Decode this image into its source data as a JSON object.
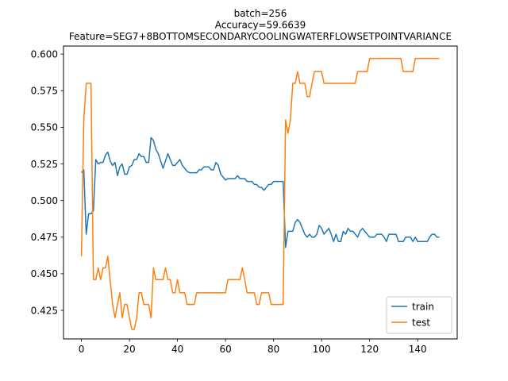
{
  "chart_data": {
    "type": "line",
    "title_lines": [
      "batch=256",
      "Accuracy=59.6639",
      "Feature=SEG7+8BOTTOMSECONDARYCOOLINGWATERFLOWSETPOINTVARIANCE"
    ],
    "xlabel": "",
    "ylabel": "",
    "xlim": [
      -7.45,
      156.45
    ],
    "ylim": [
      0.4055,
      0.6055
    ],
    "xticks": [
      0,
      20,
      40,
      60,
      80,
      100,
      120,
      140
    ],
    "yticks": [
      0.425,
      0.45,
      0.475,
      0.5,
      0.525,
      0.55,
      0.575,
      0.6
    ],
    "ytick_labels": [
      "0.425",
      "0.450",
      "0.475",
      "0.500",
      "0.525",
      "0.550",
      "0.575",
      "0.600"
    ],
    "grid": false,
    "legend": {
      "position": "lower-right",
      "entries": [
        "train",
        "test"
      ]
    },
    "series": [
      {
        "name": "train",
        "color": "#1f77b4",
        "values": [
          0.519,
          0.521,
          0.477,
          0.491,
          0.491,
          0.493,
          0.528,
          0.525,
          0.526,
          0.526,
          0.531,
          0.533,
          0.527,
          0.524,
          0.526,
          0.517,
          0.523,
          0.525,
          0.518,
          0.518,
          0.523,
          0.524,
          0.528,
          0.528,
          0.532,
          0.53,
          0.53,
          0.526,
          0.526,
          0.543,
          0.541,
          0.535,
          0.532,
          0.527,
          0.522,
          0.527,
          0.532,
          0.528,
          0.524,
          0.524,
          0.526,
          0.528,
          0.524,
          0.522,
          0.52,
          0.519,
          0.519,
          0.519,
          0.519,
          0.521,
          0.521,
          0.523,
          0.523,
          0.523,
          0.521,
          0.521,
          0.526,
          0.524,
          0.518,
          0.516,
          0.514,
          0.515,
          0.515,
          0.515,
          0.515,
          0.517,
          0.515,
          0.515,
          0.515,
          0.513,
          0.513,
          0.513,
          0.511,
          0.511,
          0.509,
          0.509,
          0.507,
          0.509,
          0.511,
          0.511,
          0.513,
          0.513,
          0.513,
          0.513,
          0.513,
          0.468,
          0.479,
          0.479,
          0.479,
          0.485,
          0.487,
          0.485,
          0.481,
          0.477,
          0.475,
          0.477,
          0.475,
          0.475,
          0.477,
          0.483,
          0.481,
          0.477,
          0.479,
          0.481,
          0.477,
          0.472,
          0.477,
          0.472,
          0.472,
          0.479,
          0.477,
          0.481,
          0.479,
          0.479,
          0.477,
          0.475,
          0.479,
          0.481,
          0.479,
          0.477,
          0.475,
          0.475,
          0.475,
          0.477,
          0.477,
          0.477,
          0.475,
          0.472,
          0.477,
          0.477,
          0.477,
          0.477,
          0.472,
          0.472,
          0.472,
          0.475,
          0.475,
          0.475,
          0.472,
          0.475,
          0.472,
          0.472,
          0.472,
          0.472,
          0.472,
          0.475,
          0.477,
          0.477,
          0.475,
          0.475
        ]
      },
      {
        "name": "test",
        "color": "#ff7f0e",
        "values": [
          0.462,
          0.555,
          0.58,
          0.58,
          0.58,
          0.446,
          0.446,
          0.454,
          0.446,
          0.454,
          0.454,
          0.462,
          0.445,
          0.429,
          0.42,
          0.429,
          0.437,
          0.42,
          0.429,
          0.429,
          0.42,
          0.412,
          0.412,
          0.42,
          0.437,
          0.437,
          0.429,
          0.429,
          0.429,
          0.42,
          0.454,
          0.446,
          0.446,
          0.446,
          0.446,
          0.454,
          0.446,
          0.446,
          0.437,
          0.437,
          0.446,
          0.437,
          0.437,
          0.437,
          0.429,
          0.429,
          0.429,
          0.429,
          0.437,
          0.437,
          0.437,
          0.437,
          0.437,
          0.437,
          0.437,
          0.437,
          0.437,
          0.437,
          0.437,
          0.437,
          0.437,
          0.446,
          0.446,
          0.446,
          0.446,
          0.446,
          0.446,
          0.454,
          0.446,
          0.437,
          0.437,
          0.437,
          0.437,
          0.429,
          0.429,
          0.437,
          0.437,
          0.437,
          0.437,
          0.429,
          0.429,
          0.429,
          0.429,
          0.429,
          0.429,
          0.555,
          0.546,
          0.555,
          0.58,
          0.58,
          0.588,
          0.58,
          0.58,
          0.58,
          0.571,
          0.571,
          0.58,
          0.588,
          0.588,
          0.588,
          0.588,
          0.58,
          0.58,
          0.58,
          0.58,
          0.58,
          0.58,
          0.58,
          0.58,
          0.58,
          0.58,
          0.58,
          0.58,
          0.58,
          0.58,
          0.588,
          0.588,
          0.588,
          0.588,
          0.588,
          0.597,
          0.597,
          0.597,
          0.597,
          0.597,
          0.597,
          0.597,
          0.597,
          0.597,
          0.597,
          0.597,
          0.597,
          0.597,
          0.597,
          0.588,
          0.588,
          0.588,
          0.588,
          0.588,
          0.597,
          0.597,
          0.597,
          0.597,
          0.597,
          0.597,
          0.597,
          0.597,
          0.597,
          0.597,
          0.597
        ]
      }
    ]
  }
}
